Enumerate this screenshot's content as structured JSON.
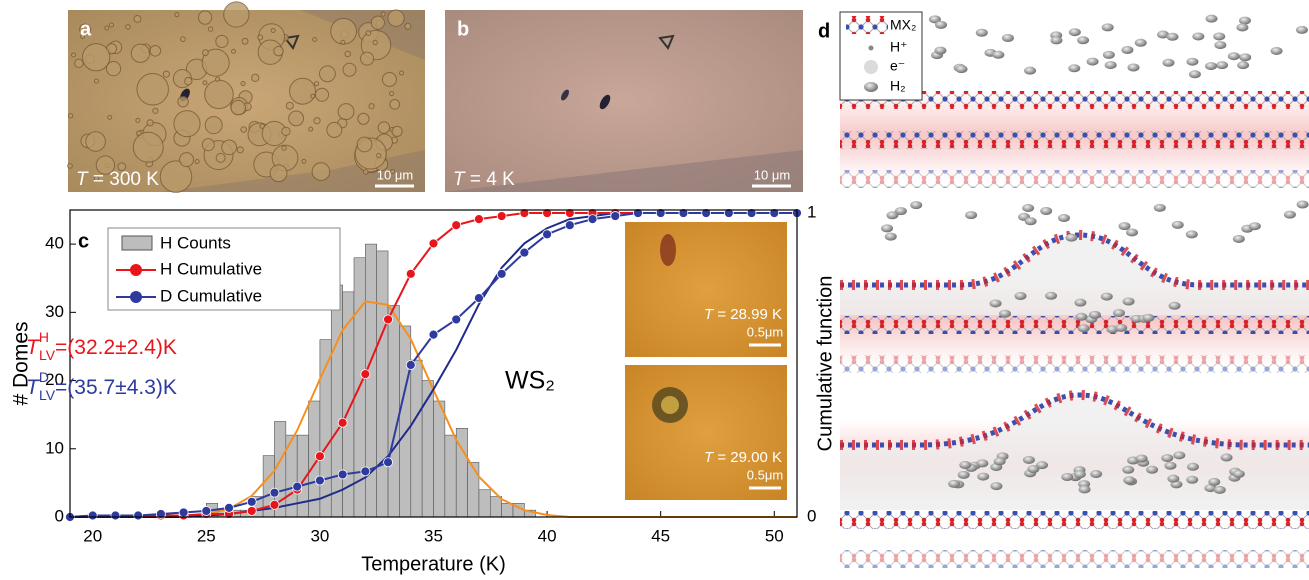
{
  "panels": {
    "a": {
      "label": "a",
      "symbol": "T",
      "caption": " = 300 K",
      "scale_bar": "10 μm"
    },
    "b": {
      "label": "b",
      "symbol": "T",
      "caption": " = 4 K",
      "scale_bar": "10 μm"
    },
    "d": {
      "label": "d",
      "legend": [
        "MX₂",
        "H⁺",
        "e⁻",
        "H₂"
      ]
    }
  },
  "insets": [
    {
      "symbol": "T",
      "caption": " = 28.99 K",
      "scale_bar": "0.5μm"
    },
    {
      "symbol": "T",
      "caption": " = 29.00 K",
      "scale_bar": "0.5μm"
    }
  ],
  "chart_data": {
    "type": "histogram",
    "panel_label": "c",
    "material": "WS₂",
    "x_label": "Temperature (K)",
    "y_label": "# Domes",
    "y2_label": "Cumulative function",
    "xlim": [
      19,
      51
    ],
    "xticks": [
      20,
      25,
      30,
      35,
      40,
      45,
      50
    ],
    "ylim": [
      0,
      45
    ],
    "yticks": [
      0,
      10,
      20,
      30,
      40
    ],
    "y2lim": [
      0,
      1.01
    ],
    "y2ticks": [
      0,
      1
    ],
    "histogram": {
      "name": "H Counts",
      "color": "#bdbdbd",
      "bins": [
        25,
        25.5,
        26,
        26.5,
        27,
        27.5,
        28,
        28.5,
        29,
        29.5,
        30,
        30.5,
        31,
        31.5,
        32,
        32.5,
        33,
        33.5,
        34,
        34.5,
        35,
        35.5,
        36,
        36.5,
        37,
        37.5,
        38,
        38.5,
        39,
        39.5,
        40
      ],
      "counts": [
        2,
        1,
        1,
        1,
        3,
        9,
        14,
        12,
        12,
        17,
        26,
        34,
        33,
        38,
        40,
        39,
        31,
        28,
        23,
        20,
        17,
        12,
        13,
        8,
        4,
        3,
        2,
        2,
        1,
        0
      ]
    },
    "x": [
      19,
      20,
      21,
      22,
      23,
      24,
      25,
      26,
      27,
      28,
      29,
      30,
      31,
      32,
      33,
      34,
      35,
      36,
      37,
      38,
      39,
      40,
      41,
      42,
      43,
      44,
      45,
      46,
      47,
      48,
      49,
      50,
      51
    ],
    "series": [
      {
        "color": "#f5901e",
        "marker": false,
        "values": [
          0,
          0,
          0,
          0,
          0,
          0,
          0.4,
          1.2,
          3.1,
          6.8,
          12.7,
          20.2,
          27.4,
          31.6,
          31.1,
          26.1,
          18.6,
          11.3,
          5.9,
          2.6,
          1.0,
          0.3,
          0,
          0,
          0,
          0,
          0,
          0,
          0,
          0,
          0,
          0,
          0
        ]
      },
      {
        "color": "#1f2a8a",
        "marker": false,
        "axis": "y2",
        "values": [
          0,
          0,
          0,
          0,
          0,
          0,
          0.005,
          0.01,
          0.02,
          0.03,
          0.045,
          0.06,
          0.09,
          0.13,
          0.2,
          0.3,
          0.42,
          0.55,
          0.7,
          0.82,
          0.9,
          0.95,
          0.98,
          0.99,
          1,
          1,
          1,
          1,
          1,
          1,
          1,
          1,
          1
        ]
      },
      {
        "name": "H Cumulative",
        "color": "#e8151b",
        "marker": true,
        "axis": "y2",
        "values": [
          0,
          0.005,
          0.005,
          0.005,
          0.005,
          0.005,
          0.01,
          0.01,
          0.02,
          0.04,
          0.09,
          0.2,
          0.31,
          0.47,
          0.65,
          0.8,
          0.9,
          0.96,
          0.98,
          0.99,
          1,
          1,
          1,
          1,
          1,
          1,
          1,
          1,
          1,
          1,
          1,
          1,
          1
        ]
      },
      {
        "name": "D Cumulative",
        "color": "#2e3a9e",
        "marker": true,
        "axis": "y2",
        "values": [
          0,
          0.005,
          0.005,
          0.005,
          0.01,
          0.015,
          0.02,
          0.03,
          0.05,
          0.08,
          0.1,
          0.12,
          0.14,
          0.15,
          0.18,
          0.5,
          0.6,
          0.65,
          0.72,
          0.8,
          0.87,
          0.93,
          0.96,
          0.98,
          0.99,
          1,
          1,
          1,
          1,
          1,
          1,
          1,
          1
        ]
      }
    ],
    "annotations": [
      {
        "symbol": "T",
        "sup": "H",
        "sub": "LV",
        "text": "=(32.2±2.4)K",
        "color": "#e8151b"
      },
      {
        "symbol": "T",
        "sup": "D",
        "sub": "LV",
        "text": "=(35.7±4.3)K",
        "color": "#2e3a9e"
      }
    ]
  }
}
